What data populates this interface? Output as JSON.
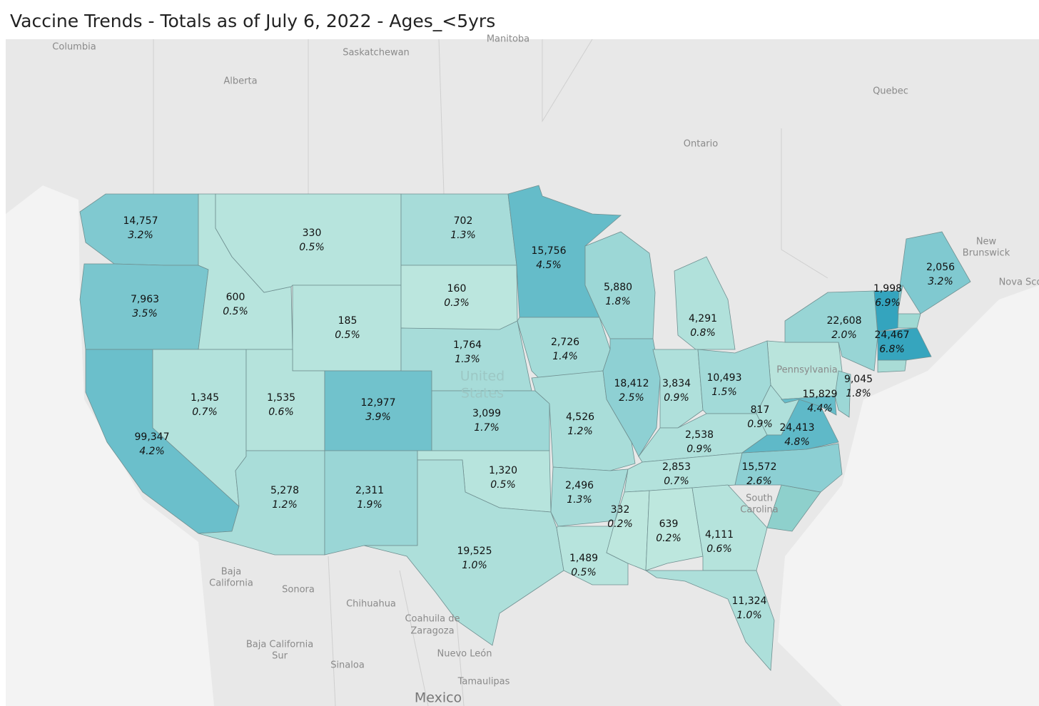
{
  "header": {
    "title": "Vaccine Trends - Totals as of July 6, 2022 - Ages_<5yrs"
  },
  "basemap_labels": [
    "Columbia",
    "Saskatchewan",
    "Manitoba",
    "Alberta",
    "Quebec",
    "Ontario",
    "New",
    "Brunswick",
    "Nova Sco",
    "United",
    "States",
    "Pennsylvania",
    "South",
    "Carolina",
    "Baja",
    "California",
    "Sonora",
    "Chihuahua",
    "Coahuila de",
    "Zaragoza",
    "Nuevo León",
    "Baja California",
    "Sur",
    "Sinaloa",
    "Tamaulipas",
    "Mexico"
  ],
  "regions": [
    {
      "count": 14757,
      "count_label": "14,757",
      "percent": 3.2,
      "percent_label": "3.2%"
    },
    {
      "count": 7963,
      "count_label": "7,963",
      "percent": 3.5,
      "percent_label": "3.5%"
    },
    {
      "count": 99347,
      "count_label": "99,347",
      "percent": 4.2,
      "percent_label": "4.2%"
    },
    {
      "count": 600,
      "percent": 0.5,
      "percent_label": "0.5%"
    },
    {
      "count": 1345,
      "count_label": "1,345",
      "percent": 0.7,
      "percent_label": "0.7%"
    },
    {
      "count": 330,
      "percent": 0.5,
      "percent_label": "0.5%"
    },
    {
      "count": 185,
      "percent": 0.5,
      "percent_label": "0.5%"
    },
    {
      "count": 1535,
      "count_label": "1,535",
      "percent": 0.6,
      "percent_label": "0.6%"
    },
    {
      "count": 5278,
      "count_label": "5,278",
      "percent": 1.2,
      "percent_label": "1.2%"
    },
    {
      "count": 12977,
      "count_label": "12,977",
      "percent": 3.9,
      "percent_label": "3.9%"
    },
    {
      "count": 2311,
      "count_label": "2,311",
      "percent": 1.9,
      "percent_label": "1.9%"
    },
    {
      "count": 702,
      "percent": 1.3,
      "percent_label": "1.3%"
    },
    {
      "count": 160,
      "percent": 0.3,
      "percent_label": "0.3%"
    },
    {
      "count": 1764,
      "count_label": "1,764",
      "percent": 1.3,
      "percent_label": "1.3%"
    },
    {
      "count": 3099,
      "count_label": "3,099",
      "percent": 1.7,
      "percent_label": "1.7%"
    },
    {
      "count": 1320,
      "count_label": "1,320",
      "percent": 0.5,
      "percent_label": "0.5%"
    },
    {
      "count": 19525,
      "count_label": "19,525",
      "percent": 1.0,
      "percent_label": "1.0%"
    },
    {
      "count": 15756,
      "count_label": "15,756",
      "percent": 4.5,
      "percent_label": "4.5%"
    },
    {
      "count": 2726,
      "count_label": "2,726",
      "percent": 1.4,
      "percent_label": "1.4%"
    },
    {
      "count": 4526,
      "count_label": "4,526",
      "percent": 1.2,
      "percent_label": "1.2%"
    },
    {
      "count": 2496,
      "count_label": "2,496",
      "percent": 1.3,
      "percent_label": "1.3%"
    },
    {
      "count": 1489,
      "count_label": "1,489",
      "percent": 0.5,
      "percent_label": "0.5%"
    },
    {
      "count": 5880,
      "count_label": "5,880",
      "percent": 1.8,
      "percent_label": "1.8%"
    },
    {
      "count": 18412,
      "count_label": "18,412",
      "percent": 2.5,
      "percent_label": "2.5%"
    },
    {
      "count": 4291,
      "count_label": "4,291",
      "percent": 0.8,
      "percent_label": "0.8%"
    },
    {
      "count": 3834,
      "count_label": "3,834",
      "percent": 0.9,
      "percent_label": "0.9%"
    },
    {
      "count": 10493,
      "count_label": "10,493",
      "percent": 1.5,
      "percent_label": "1.5%"
    },
    {
      "count": 2538,
      "count_label": "2,538",
      "percent": 0.9,
      "percent_label": "0.9%"
    },
    {
      "count": 2853,
      "count_label": "2,853",
      "percent": 0.7,
      "percent_label": "0.7%"
    },
    {
      "count": 332,
      "percent": 0.2,
      "percent_label": "0.2%"
    },
    {
      "count": 639,
      "percent": 0.2,
      "percent_label": "0.2%"
    },
    {
      "count": 4111,
      "count_label": "4,111",
      "percent": 0.6,
      "percent_label": "0.6%"
    },
    {
      "count": 11324,
      "count_label": "11,324",
      "percent": 1.0,
      "percent_label": "1.0%"
    },
    {
      "count": 15572,
      "count_label": "15,572",
      "percent": 2.6,
      "percent_label": "2.6%"
    },
    {
      "count": 817,
      "percent": 0.9,
      "percent_label": "0.9%"
    },
    {
      "count": 24413,
      "count_label": "24,413",
      "percent": 4.8,
      "percent_label": "4.8%"
    },
    {
      "count": 15829,
      "count_label": "15,829",
      "percent": 4.4,
      "percent_label": "4.4%"
    },
    {
      "count": 9045,
      "count_label": "9,045",
      "percent": 1.8,
      "percent_label": "1.8%"
    },
    {
      "count": 22608,
      "count_label": "22,608",
      "percent": 2.0,
      "percent_label": "2.0%"
    },
    {
      "count": 1998,
      "count_label": "1,998",
      "percent": 6.9,
      "percent_label": "6.9%"
    },
    {
      "count": 24467,
      "count_label": "24,467",
      "percent": 6.8,
      "percent_label": "6.8%"
    },
    {
      "count": 2056,
      "count_label": "2,056",
      "percent": 3.2,
      "percent_label": "3.2%"
    }
  ]
}
